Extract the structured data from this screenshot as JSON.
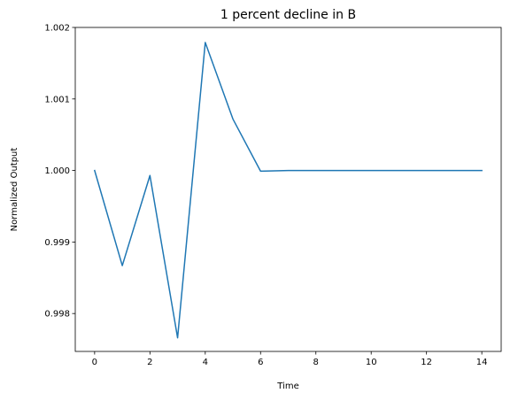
{
  "chart_data": {
    "type": "line",
    "title": "1 percent decline in B",
    "xlabel": "Time",
    "ylabel": "Normalized Output",
    "xlim": [
      -0.7,
      14.7
    ],
    "ylim": [
      0.99747,
      1.002
    ],
    "xticks": [
      0,
      2,
      4,
      6,
      8,
      10,
      12,
      14
    ],
    "xtick_labels": [
      "0",
      "2",
      "4",
      "6",
      "8",
      "10",
      "12",
      "14"
    ],
    "yticks": [
      0.998,
      0.999,
      1.0,
      1.001,
      1.002
    ],
    "ytick_labels": [
      "0.998",
      "0.999",
      "1.000",
      "1.001",
      "1.002"
    ],
    "grid": false,
    "series": [
      {
        "color": "#1f77b4",
        "x": [
          0,
          1,
          2,
          3,
          4,
          5,
          6,
          7,
          8,
          9,
          10,
          11,
          12,
          13,
          14
        ],
        "y": [
          1.0,
          0.99867,
          0.99993,
          0.99766,
          1.00179,
          1.00072,
          0.99999,
          1.0,
          1.0,
          1.0,
          1.0,
          1.0,
          1.0,
          1.0,
          1.0
        ]
      }
    ]
  }
}
